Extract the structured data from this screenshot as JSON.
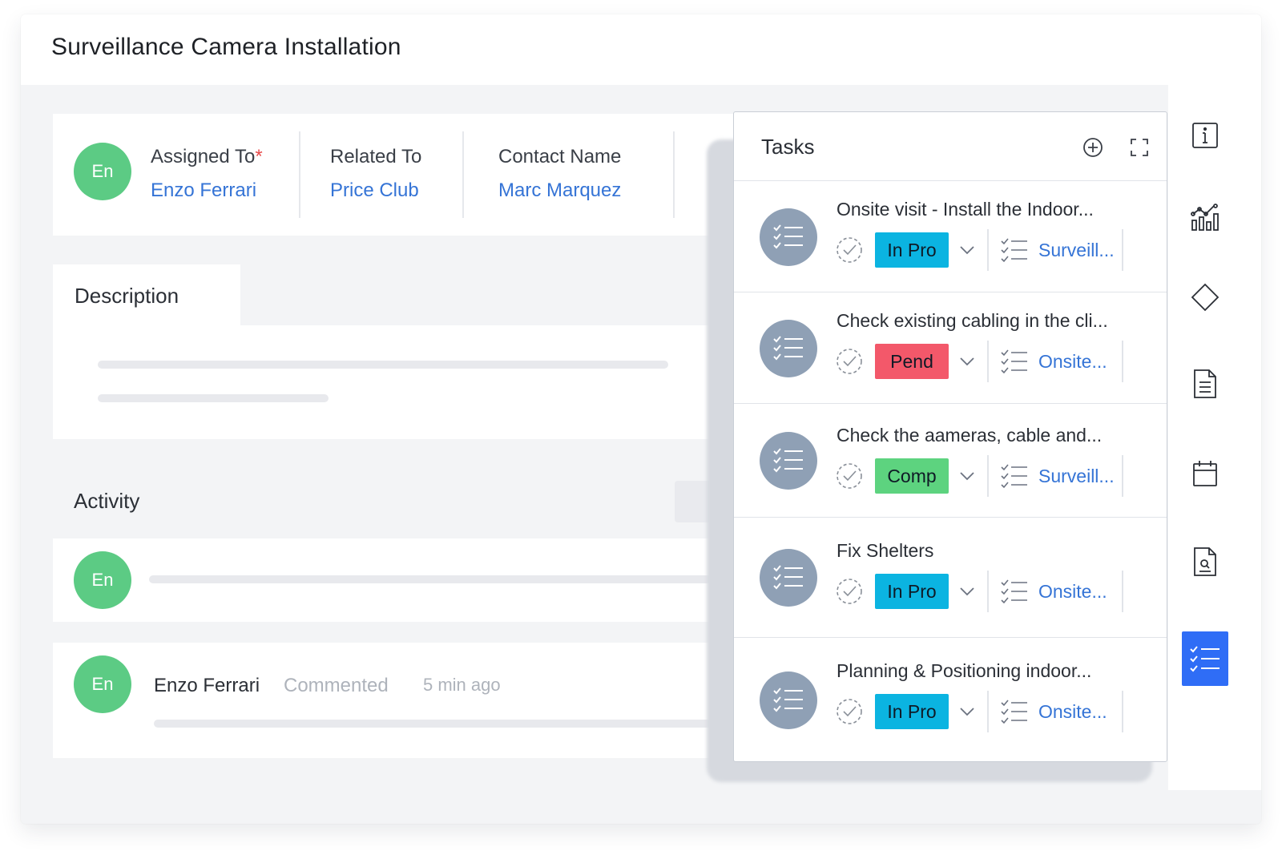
{
  "page": {
    "title": "Surveillance Camera Installation"
  },
  "fields": {
    "avatar_initials": "En",
    "assigned_to": {
      "label": "Assigned To",
      "required_mark": "*",
      "value": "Enzo Ferrari"
    },
    "related_to": {
      "label": "Related To",
      "value": "Price Club"
    },
    "contact_name": {
      "label": "Contact Name",
      "value": "Marc Marquez"
    }
  },
  "description": {
    "tab_label": "Description"
  },
  "activity": {
    "title": "Activity",
    "composer_avatar": "En",
    "entry": {
      "avatar": "En",
      "author": "Enzo Ferrari",
      "action": "Commented",
      "time": "5 min ago"
    }
  },
  "tasks": {
    "title": "Tasks",
    "items": [
      {
        "title": "Onsite visit  - Install the Indoor...",
        "status": "In Pro",
        "status_color": "#0bb4e1",
        "related": "Surveill..."
      },
      {
        "title": "Check existing cabling in the cli...",
        "status": "Pend",
        "status_color": "#f3586a",
        "related": "Onsite..."
      },
      {
        "title": "Check the aameras, cable and...",
        "status": "Comp",
        "status_color": "#5dd37f",
        "related": "Surveill..."
      },
      {
        "title": "Fix Shelters",
        "status": "In Pro",
        "status_color": "#0bb4e1",
        "related": "Onsite..."
      },
      {
        "title": "Planning & Positioning indoor...",
        "status": "In Pro",
        "status_color": "#0bb4e1",
        "related": "Onsite..."
      }
    ]
  },
  "rail": {
    "icons": [
      "info-icon",
      "analytics-icon",
      "diamond-icon",
      "document-icon",
      "calendar-icon",
      "report-icon",
      "task-list-icon"
    ],
    "active": "task-list-icon",
    "accent_color": "#2f6df6"
  }
}
